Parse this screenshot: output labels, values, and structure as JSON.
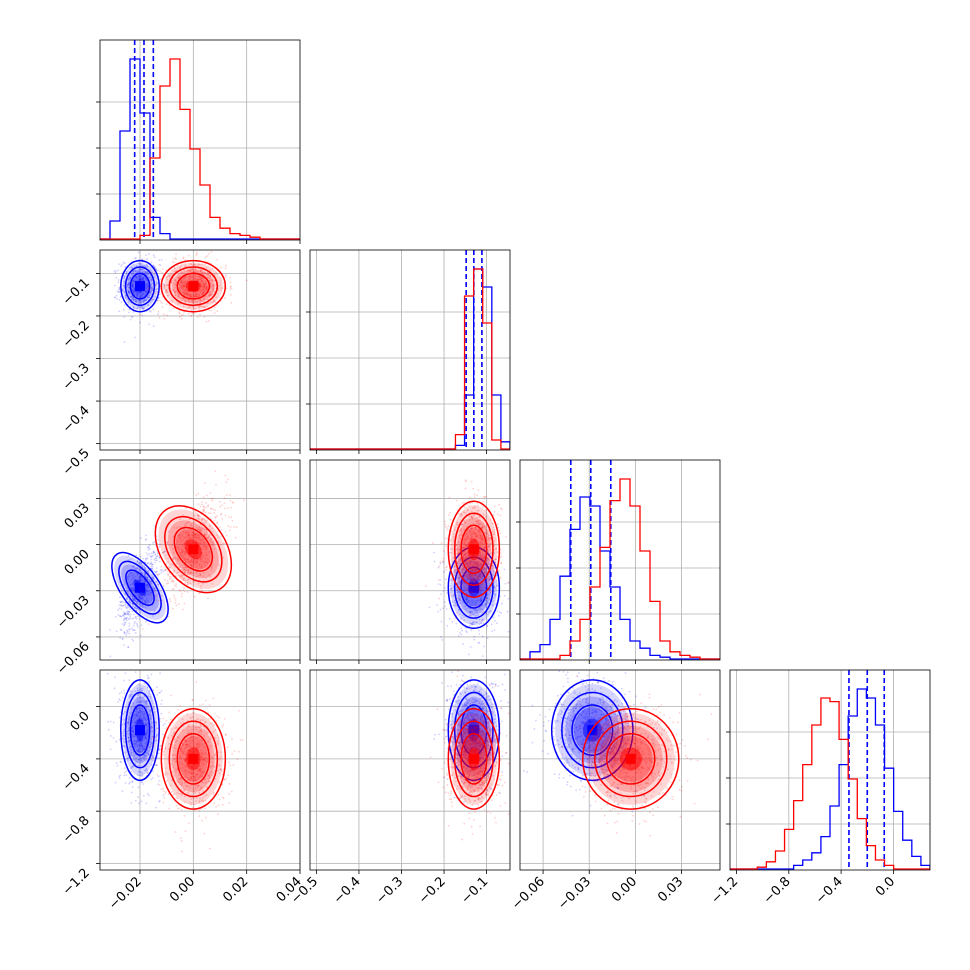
{
  "chart_data": {
    "type": "corner",
    "n_params": 4,
    "series": [
      {
        "color": "#0000ff",
        "mean": [
          -0.02,
          -0.13,
          -0.028,
          -0.18
        ],
        "std": [
          0.003,
          0.025,
          0.011,
          0.16
        ],
        "hist1d": [
          [
            0.0,
            0.1,
            0.6,
            1.0,
            0.7,
            0.12,
            0.03,
            0.0,
            0.0,
            0.0,
            0.0,
            0.0,
            0.0,
            0.0,
            0.0,
            0.0,
            0.0,
            0.0,
            0.0,
            0.0
          ],
          [
            0.0,
            0.0,
            0.0,
            0.0,
            0.0,
            0.0,
            0.0,
            0.0,
            0.0,
            0.0,
            0.0,
            0.0,
            0.0,
            0.0,
            0.0,
            0.0,
            0.02,
            0.3,
            1.0,
            0.9,
            0.3,
            0.04
          ],
          [
            0.0,
            0.04,
            0.08,
            0.22,
            0.46,
            0.72,
            0.9,
            0.85,
            0.6,
            0.4,
            0.22,
            0.1,
            0.06,
            0.02,
            0.01,
            0.0,
            0.0,
            0.0,
            0.0,
            0.0
          ],
          [
            0.0,
            0.0,
            0.0,
            0.0,
            0.0,
            0.0,
            0.0,
            0.02,
            0.05,
            0.09,
            0.18,
            0.35,
            0.58,
            0.85,
            1.0,
            0.95,
            0.8,
            0.56,
            0.32,
            0.16,
            0.07,
            0.02
          ]
        ],
        "quantile_lines": [
          [
            -0.022,
            -0.0185,
            -0.015
          ],
          [
            -0.148,
            -0.13,
            -0.111
          ],
          [
            -0.042,
            -0.029,
            -0.016
          ],
          [
            -0.34,
            -0.2,
            -0.07
          ]
        ]
      },
      {
        "color": "#ff0000",
        "mean": [
          0.0,
          -0.13,
          -0.003,
          -0.4
        ],
        "std": [
          0.005,
          0.025,
          0.013,
          0.16
        ],
        "hist1d": [
          [
            0.0,
            0.0,
            0.0,
            0.0,
            0.02,
            0.45,
            0.85,
            1.0,
            0.72,
            0.5,
            0.3,
            0.12,
            0.06,
            0.03,
            0.02,
            0.01,
            0.0,
            0.0,
            0.0,
            0.0
          ],
          [
            0.0,
            0.0,
            0.0,
            0.0,
            0.0,
            0.0,
            0.0,
            0.0,
            0.0,
            0.0,
            0.0,
            0.0,
            0.0,
            0.0,
            0.0,
            0.0,
            0.08,
            0.85,
            1.0,
            0.7,
            0.05,
            0.0
          ],
          [
            0.0,
            0.0,
            0.0,
            0.0,
            0.02,
            0.1,
            0.22,
            0.4,
            0.62,
            0.88,
            1.0,
            0.85,
            0.6,
            0.32,
            0.1,
            0.04,
            0.02,
            0.01,
            0.0,
            0.0
          ],
          [
            0.0,
            0.0,
            0.0,
            0.01,
            0.04,
            0.1,
            0.22,
            0.38,
            0.58,
            0.8,
            0.95,
            0.93,
            0.72,
            0.5,
            0.28,
            0.13,
            0.05,
            0.02,
            0.0,
            0.0,
            0.0,
            0.0
          ]
        ],
        "quantile_lines": []
      }
    ],
    "axes": [
      {
        "range": [
          -0.035,
          0.04
        ],
        "ticks": [
          -0.02,
          0.0,
          0.02,
          0.04
        ],
        "tick_labels": [
          "−0.02",
          "0.00",
          "0.02",
          "0.04"
        ]
      },
      {
        "range": [
          -0.515,
          -0.045
        ],
        "ticks": [
          -0.5,
          -0.4,
          -0.3,
          -0.2,
          -0.1
        ],
        "tick_labels": [
          "−0.5",
          "−0.4",
          "−0.3",
          "−0.2",
          "−0.1"
        ]
      },
      {
        "range": [
          -0.075,
          0.055
        ],
        "ticks": [
          -0.06,
          -0.03,
          0.0,
          0.03
        ],
        "tick_labels": [
          "−0.06",
          "−0.03",
          "0.00",
          "0.03"
        ]
      },
      {
        "range": [
          -1.25,
          0.28
        ],
        "ticks": [
          -1.2,
          -0.8,
          -0.4,
          0.0
        ],
        "tick_labels": [
          "−1.2",
          "−0.8",
          "−0.4",
          "0.0"
        ]
      }
    ],
    "grid": true,
    "xlabel": "",
    "ylabel": ""
  }
}
